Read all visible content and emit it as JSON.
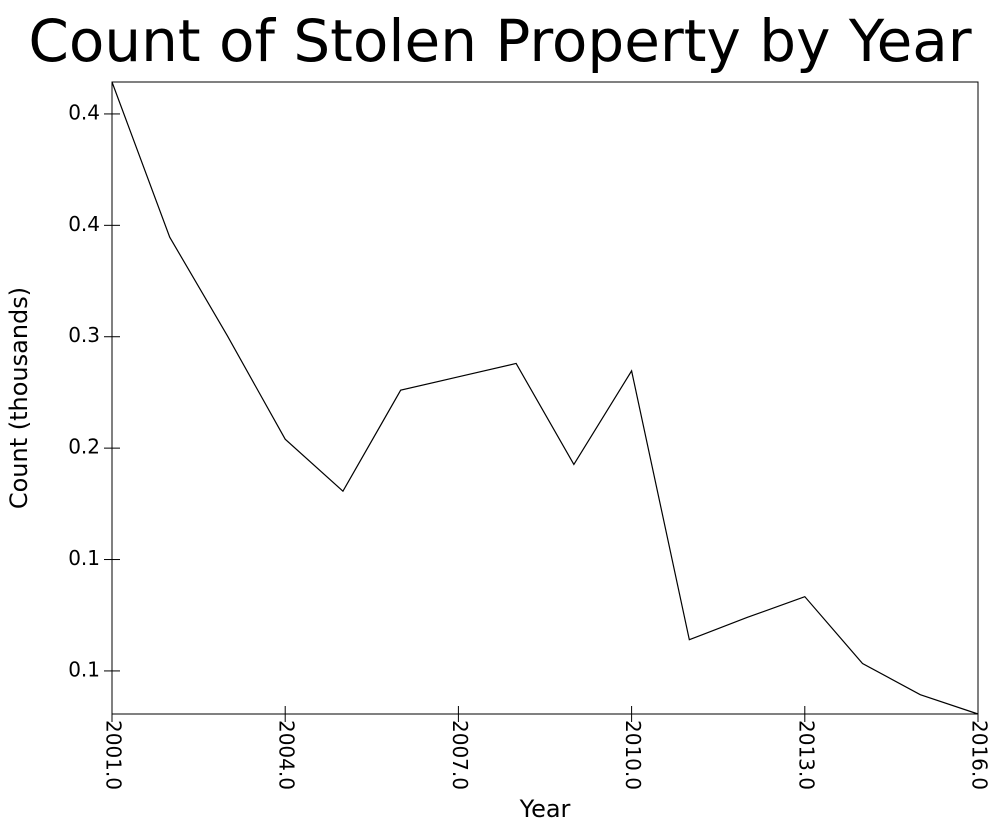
{
  "chart_data": {
    "type": "line",
    "title": "Count of Stolen Property by Year",
    "x_label": "Year",
    "y_label": "Count (thousands)",
    "x": [
      2001,
      2002,
      2003,
      2004,
      2005,
      2006,
      2007,
      2008,
      2009,
      2010,
      2011,
      2012,
      2013,
      2014,
      2015,
      2016
    ],
    "series": [
      {
        "name": "Count",
        "color": "#000000",
        "values": [
          0.4615,
          0.357,
          0.2905,
          0.221,
          0.186,
          0.254,
          0.263,
          0.272,
          0.204,
          0.267,
          0.086,
          0.101,
          0.115,
          0.07,
          0.049,
          0.036
        ]
      }
    ],
    "xlim": [
      2001,
      2016
    ],
    "xticks": [
      {
        "value": 2001,
        "label": "2001.0"
      },
      {
        "value": 2004,
        "label": "2004.0"
      },
      {
        "value": 2007,
        "label": "2007.0"
      },
      {
        "value": 2010,
        "label": "2010.0"
      },
      {
        "value": 2013,
        "label": "2013.0"
      },
      {
        "value": 2016,
        "label": "2016.0"
      }
    ],
    "ylim": [
      0.036,
      0.4615
    ],
    "yticks": [
      {
        "value": 0.065,
        "label": "0.1"
      },
      {
        "value": 0.14,
        "label": "0.1"
      },
      {
        "value": 0.215,
        "label": "0.2"
      },
      {
        "value": 0.29,
        "label": "0.3"
      },
      {
        "value": 0.365,
        "label": "0.4"
      },
      {
        "value": 0.44,
        "label": "0.4"
      }
    ]
  }
}
